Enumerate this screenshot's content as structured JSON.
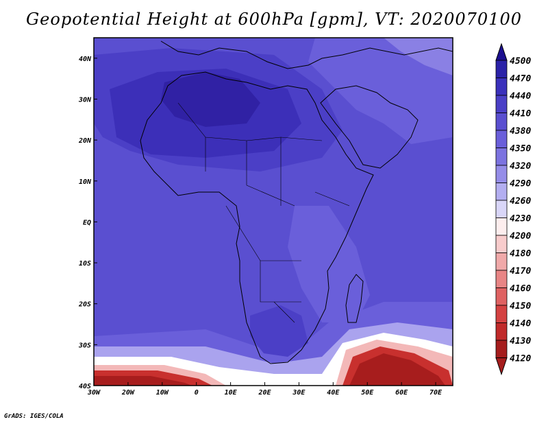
{
  "title": "Geopotential Height at 600hPa [gpm], VT: 2020070100",
  "credit": "GrADS: IGES/COLA",
  "map": {
    "lon_range": [
      -30,
      75
    ],
    "lat_range": [
      -40,
      45
    ],
    "x_ticks": [
      "30W",
      "20W",
      "10W",
      "0",
      "10E",
      "20E",
      "30E",
      "40E",
      "50E",
      "60E",
      "70E"
    ],
    "y_ticks": [
      "40N",
      "30N",
      "20N",
      "10N",
      "EQ",
      "10S",
      "20S",
      "30S",
      "40S"
    ]
  },
  "colorbar": {
    "levels": [
      "4500",
      "4470",
      "4440",
      "4410",
      "4380",
      "4350",
      "4320",
      "4290",
      "4260",
      "4230",
      "4200",
      "4180",
      "4170",
      "4160",
      "4150",
      "4140",
      "4130",
      "4120"
    ],
    "colors": [
      "#1c0f8f",
      "#2b22a8",
      "#3a30bb",
      "#4a3fc6",
      "#5a4fd0",
      "#6a5fda",
      "#7c73e0",
      "#958de8",
      "#b3aef0",
      "#d9d6f8",
      "#fdeeee",
      "#f8cccc",
      "#f0a9a9",
      "#e88585",
      "#df6262",
      "#d44242",
      "#c02a2a",
      "#a51d1d"
    ]
  },
  "field_colors": {
    "deep": "#3021a4",
    "high": "#3c2fb8",
    "mid": "#4b3fc6",
    "base": "#5a4fd0",
    "low": "#6a5fda",
    "pale": "#8a80e4",
    "paler": "#aaa3ee",
    "white": "#ffffff",
    "pink": "#f3b8b8",
    "red": "#c8302e",
    "darkred": "#a71d1d"
  }
}
